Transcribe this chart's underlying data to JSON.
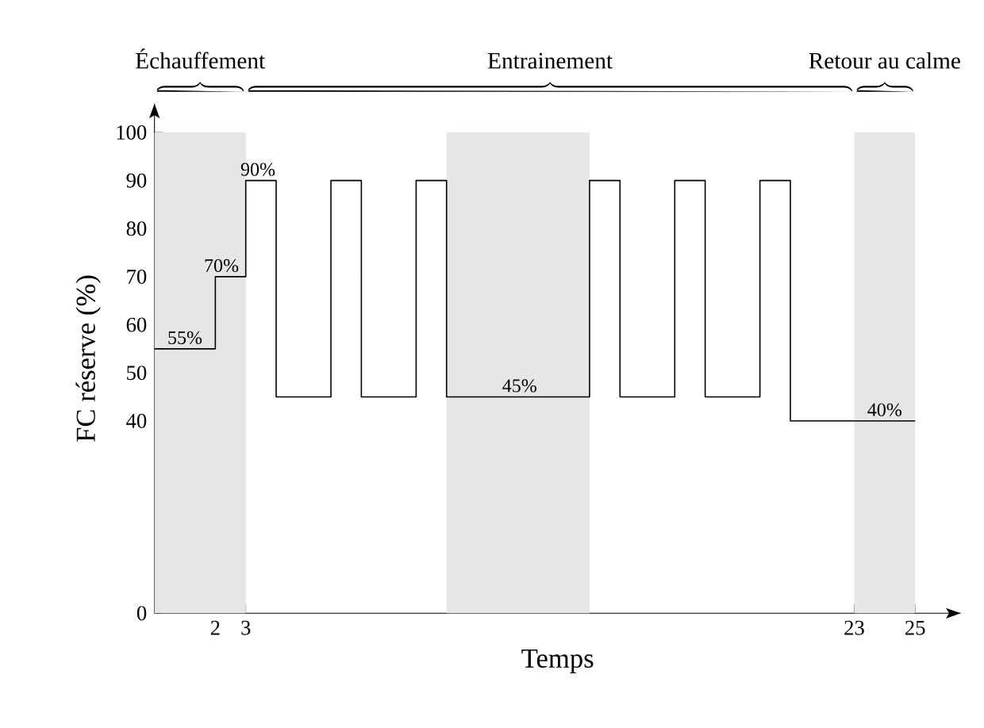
{
  "chart_data": {
    "type": "step",
    "xlabel": "Temps",
    "ylabel": "FC réserve (%)",
    "x": [
      0,
      2,
      3,
      4,
      5.8,
      6.8,
      8.6,
      9.6,
      14.3,
      15.3,
      17.1,
      18.1,
      19.9,
      20.9,
      25
    ],
    "values": [
      55,
      70,
      90,
      45,
      90,
      45,
      90,
      45,
      90,
      45,
      90,
      45,
      90,
      40,
      40
    ],
    "color": "#000000",
    "xlim": [
      0,
      26.5
    ],
    "ylim": [
      0,
      106
    ],
    "xticks": [
      2,
      3,
      23,
      25
    ],
    "yticks": [
      0,
      40,
      50,
      60,
      70,
      80,
      90,
      100
    ],
    "bands": [
      {
        "axis": "x",
        "from": 0,
        "to": 3,
        "color": "#e6e6e6"
      },
      {
        "axis": "x",
        "from": 9.6,
        "to": 14.3,
        "color": "#e6e6e6"
      },
      {
        "axis": "x",
        "from": 23,
        "to": 25,
        "color": "#e6e6e6"
      }
    ],
    "annotations": [
      "Échauffement",
      "Entrainement",
      "Retour au calme",
      {
        "text": "55%",
        "x": 1,
        "y": 55
      },
      {
        "text": "70%",
        "x": 2.2,
        "y": 70
      },
      {
        "text": "90%",
        "x": 3.4,
        "y": 90
      },
      {
        "text": "45%",
        "x": 12,
        "y": 45
      },
      {
        "text": "40%",
        "x": 24,
        "y": 40
      }
    ],
    "grid": false
  }
}
